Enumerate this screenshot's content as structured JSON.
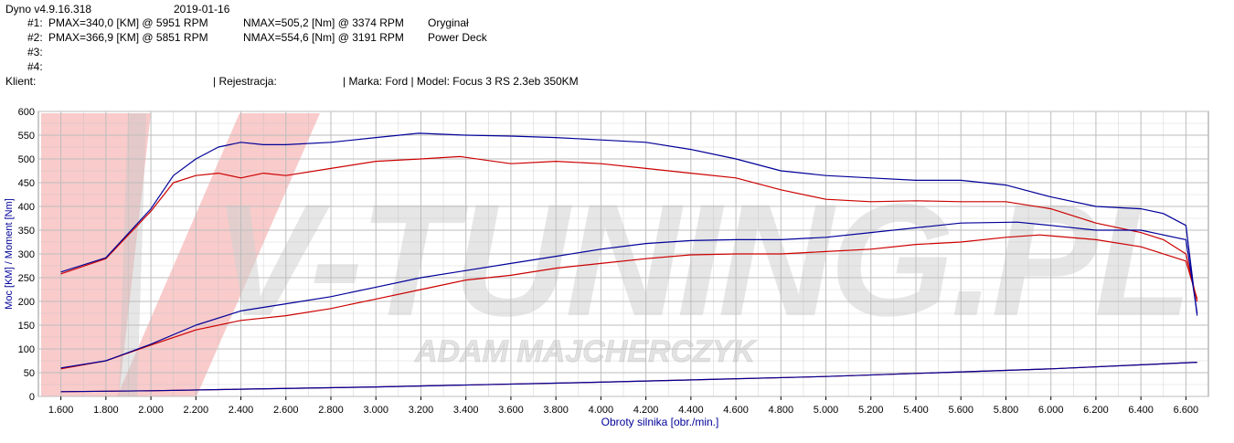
{
  "header": {
    "software": "Dyno v4.9.16.318",
    "date": "2019-01-16",
    "runs": [
      {
        "id": "#1:",
        "pmax": "PMAX=340,0 [KM] @ 5951 RPM",
        "nmax": "NMAX=505,2 [Nm] @ 3374 RPM",
        "label": "Oryginał"
      },
      {
        "id": "#2:",
        "pmax": "PMAX=366,9 [KM] @ 5851 RPM",
        "nmax": "NMAX=554,6 [Nm] @ 3191 RPM",
        "label": "Power Deck"
      },
      {
        "id": "#3:",
        "pmax": "",
        "nmax": "",
        "label": ""
      },
      {
        "id": "#4:",
        "pmax": "",
        "nmax": "",
        "label": ""
      }
    ],
    "client_label": "Klient:",
    "registration_label": "| Rejestracja:",
    "make_model": "| Marka: Ford | Model: Focus 3 RS 2.3eb 350KM"
  },
  "watermark": {
    "logo_text": "V-TUNING.PL",
    "sub_text": "ADAM MAJCHERCZYK"
  },
  "colors": {
    "original": "#cc0000",
    "powerdeck": "#000099",
    "grid": "#bdbdbd",
    "axis_text": "#000099"
  },
  "chart_data": {
    "type": "line",
    "xlabel": "Obroty silnika [obr./min.]",
    "ylabel": "Moc [KM] / Moment [Nm]",
    "xlim": [
      1500,
      6700
    ],
    "ylim": [
      0,
      600
    ],
    "x_ticks": [
      1600,
      1800,
      2000,
      2200,
      2400,
      2600,
      2800,
      3000,
      3200,
      3400,
      3600,
      3800,
      4000,
      4200,
      4400,
      4600,
      4800,
      5000,
      5200,
      5400,
      5600,
      5800,
      6000,
      6200,
      6400,
      6600
    ],
    "x_tick_labels": [
      "1.600",
      "1.800",
      "2.000",
      "2.200",
      "2.400",
      "2.600",
      "2.800",
      "3.000",
      "3.200",
      "3.400",
      "3.600",
      "3.800",
      "4.000",
      "4.200",
      "4.400",
      "4.600",
      "4.800",
      "5.000",
      "5.200",
      "5.400",
      "5.600",
      "5.800",
      "6.000",
      "6.200",
      "6.400",
      "6.600"
    ],
    "y_ticks": [
      0,
      50,
      100,
      150,
      200,
      250,
      300,
      350,
      400,
      450,
      500,
      550,
      600
    ],
    "grid": true,
    "series": [
      {
        "run": "#1",
        "quantity": "torque",
        "color": "#cc0000",
        "x": [
          1600,
          1800,
          2000,
          2100,
          2200,
          2300,
          2400,
          2500,
          2600,
          2800,
          3000,
          3200,
          3374,
          3600,
          3800,
          4000,
          4200,
          4400,
          4600,
          4800,
          5000,
          5200,
          5400,
          5600,
          5800,
          6000,
          6200,
          6400,
          6500,
          6600,
          6650
        ],
        "y": [
          258,
          290,
          390,
          450,
          465,
          470,
          460,
          470,
          465,
          480,
          495,
          500,
          505,
          490,
          495,
          490,
          480,
          470,
          460,
          435,
          415,
          410,
          412,
          410,
          410,
          395,
          365,
          345,
          330,
          300,
          200
        ]
      },
      {
        "run": "#2",
        "quantity": "torque",
        "color": "#000099",
        "x": [
          1600,
          1800,
          2000,
          2100,
          2200,
          2300,
          2400,
          2500,
          2600,
          2800,
          3000,
          3191,
          3400,
          3600,
          3800,
          4000,
          4200,
          4400,
          4600,
          4800,
          5000,
          5200,
          5400,
          5600,
          5800,
          6000,
          6200,
          6400,
          6500,
          6600,
          6650
        ],
        "y": [
          262,
          292,
          395,
          465,
          500,
          525,
          535,
          530,
          530,
          535,
          545,
          554,
          550,
          548,
          545,
          540,
          535,
          520,
          500,
          475,
          465,
          460,
          455,
          455,
          445,
          420,
          400,
          395,
          385,
          360,
          170
        ]
      },
      {
        "run": "#1",
        "quantity": "power",
        "color": "#cc0000",
        "x": [
          1600,
          1800,
          2000,
          2200,
          2400,
          2600,
          2800,
          3000,
          3200,
          3400,
          3600,
          3800,
          4000,
          4200,
          4400,
          4600,
          4800,
          5000,
          5200,
          5400,
          5600,
          5800,
          5951,
          6200,
          6400,
          6600,
          6650
        ],
        "y": [
          58,
          75,
          108,
          140,
          160,
          170,
          185,
          205,
          225,
          245,
          255,
          270,
          280,
          290,
          298,
          300,
          300,
          305,
          310,
          320,
          325,
          335,
          340,
          330,
          315,
          285,
          205
        ]
      },
      {
        "run": "#2",
        "quantity": "power",
        "color": "#000099",
        "x": [
          1600,
          1800,
          2000,
          2200,
          2400,
          2600,
          2800,
          3000,
          3200,
          3400,
          3600,
          3800,
          4000,
          4200,
          4400,
          4600,
          4800,
          5000,
          5200,
          5400,
          5600,
          5851,
          6000,
          6200,
          6400,
          6600,
          6650
        ],
        "y": [
          60,
          75,
          110,
          150,
          180,
          195,
          210,
          230,
          250,
          265,
          280,
          295,
          310,
          322,
          328,
          330,
          330,
          335,
          345,
          355,
          365,
          367,
          360,
          350,
          350,
          330,
          175
        ]
      },
      {
        "run": "#1",
        "quantity": "loss",
        "color": "#cc0000",
        "x": [
          1600,
          2000,
          3000,
          4000,
          5000,
          6000,
          6650
        ],
        "y": [
          10,
          12,
          20,
          30,
          42,
          58,
          72
        ]
      },
      {
        "run": "#2",
        "quantity": "loss",
        "color": "#000099",
        "x": [
          1600,
          2000,
          3000,
          4000,
          5000,
          6000,
          6650
        ],
        "y": [
          10,
          12,
          20,
          30,
          42,
          58,
          72
        ]
      }
    ]
  }
}
